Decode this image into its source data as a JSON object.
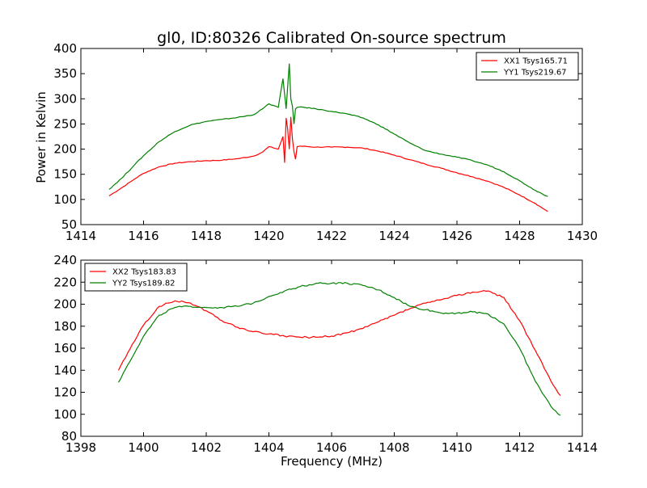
{
  "figure": {
    "title": "gl0, ID:80326 Calibrated On-source spectrum",
    "xlabel": "Frequency (MHz)",
    "top_ylabel": "Power in Kelvin"
  },
  "chart_data": [
    {
      "type": "line",
      "title": "gl0, ID:80326 Calibrated On-source spectrum",
      "xlabel": "",
      "ylabel": "Power in Kelvin",
      "xlim": [
        1414,
        1430
      ],
      "ylim": [
        50,
        400
      ],
      "xticks": [
        1414,
        1416,
        1418,
        1420,
        1422,
        1424,
        1426,
        1428,
        1430
      ],
      "yticks": [
        50,
        100,
        150,
        200,
        250,
        300,
        350,
        400
      ],
      "legend_position": "top-right",
      "grid": false,
      "series": [
        {
          "name": "XX1 Tsys165.71",
          "color": "#ff0000",
          "x": [
            1414.9,
            1415.3,
            1415.7,
            1416.0,
            1416.5,
            1417.0,
            1417.5,
            1418.0,
            1418.5,
            1419.0,
            1419.5,
            1419.8,
            1420.0,
            1420.3,
            1420.45,
            1420.5,
            1420.55,
            1420.6,
            1420.65,
            1420.7,
            1420.75,
            1420.8,
            1420.85,
            1420.9,
            1421.0,
            1421.5,
            1422.0,
            1422.5,
            1423.0,
            1423.5,
            1424.0,
            1424.5,
            1425.0,
            1425.5,
            1426.0,
            1426.5,
            1427.0,
            1427.5,
            1428.0,
            1428.5,
            1428.9
          ],
          "y": [
            107,
            123,
            140,
            152,
            165,
            172,
            175,
            177,
            178,
            181,
            186,
            194,
            205,
            200,
            225,
            173,
            262,
            240,
            200,
            264,
            220,
            195,
            180,
            205,
            206,
            204,
            204,
            204,
            202,
            196,
            188,
            179,
            170,
            162,
            153,
            145,
            136,
            124,
            109,
            92,
            76
          ]
        },
        {
          "name": "YY1 Tsys219.67",
          "color": "#008000",
          "x": [
            1414.9,
            1415.3,
            1415.7,
            1416.0,
            1416.5,
            1417.0,
            1417.5,
            1418.0,
            1418.5,
            1419.0,
            1419.5,
            1419.8,
            1420.0,
            1420.3,
            1420.45,
            1420.55,
            1420.65,
            1420.7,
            1420.75,
            1420.8,
            1420.85,
            1420.9,
            1421.0,
            1421.5,
            1422.0,
            1422.5,
            1423.0,
            1423.5,
            1424.0,
            1424.5,
            1425.0,
            1425.5,
            1426.0,
            1426.5,
            1427.0,
            1427.5,
            1428.0,
            1428.5,
            1428.9
          ],
          "y": [
            120,
            142,
            168,
            187,
            215,
            235,
            248,
            255,
            259,
            263,
            268,
            280,
            290,
            283,
            340,
            280,
            370,
            300,
            285,
            250,
            280,
            283,
            284,
            280,
            275,
            270,
            262,
            248,
            230,
            212,
            197,
            190,
            184,
            177,
            168,
            155,
            137,
            118,
            106
          ]
        }
      ]
    },
    {
      "type": "line",
      "title": "",
      "xlabel": "Frequency (MHz)",
      "ylabel": "",
      "xlim": [
        1398,
        1414
      ],
      "ylim": [
        80,
        240
      ],
      "xticks": [
        1398,
        1400,
        1402,
        1404,
        1406,
        1408,
        1410,
        1412,
        1414
      ],
      "yticks": [
        80,
        100,
        120,
        140,
        160,
        180,
        200,
        220,
        240
      ],
      "legend_position": "top-left",
      "grid": false,
      "series": [
        {
          "name": "XX2 Tsys183.83",
          "color": "#ff0000",
          "x": [
            1399.2,
            1399.5,
            1400.0,
            1400.5,
            1401.0,
            1401.5,
            1402.0,
            1402.5,
            1403.0,
            1403.5,
            1404.0,
            1404.5,
            1405.0,
            1405.5,
            1406.0,
            1406.5,
            1407.0,
            1407.5,
            1408.0,
            1408.5,
            1409.0,
            1409.5,
            1410.0,
            1410.5,
            1411.0,
            1411.5,
            1412.0,
            1412.5,
            1413.0,
            1413.3
          ],
          "y": [
            140,
            156,
            181,
            198,
            203,
            201,
            194,
            185,
            179,
            175,
            173,
            171,
            170,
            170,
            171,
            174,
            178,
            184,
            190,
            196,
            201,
            204,
            208,
            211,
            212,
            206,
            185,
            158,
            130,
            117
          ]
        },
        {
          "name": "YY2 Tsys189.82",
          "color": "#008000",
          "x": [
            1399.2,
            1399.5,
            1400.0,
            1400.5,
            1401.0,
            1401.5,
            1402.0,
            1402.5,
            1403.0,
            1403.5,
            1404.0,
            1404.5,
            1405.0,
            1405.5,
            1406.0,
            1406.5,
            1407.0,
            1407.5,
            1408.0,
            1408.5,
            1409.0,
            1409.5,
            1410.0,
            1410.5,
            1411.0,
            1411.5,
            1412.0,
            1412.5,
            1413.0,
            1413.3
          ],
          "y": [
            129,
            145,
            171,
            190,
            197,
            198,
            197,
            197,
            198,
            201,
            207,
            212,
            216,
            219,
            219,
            219,
            217,
            213,
            206,
            198,
            195,
            192,
            192,
            193,
            191,
            182,
            160,
            130,
            107,
            99
          ]
        }
      ]
    }
  ]
}
